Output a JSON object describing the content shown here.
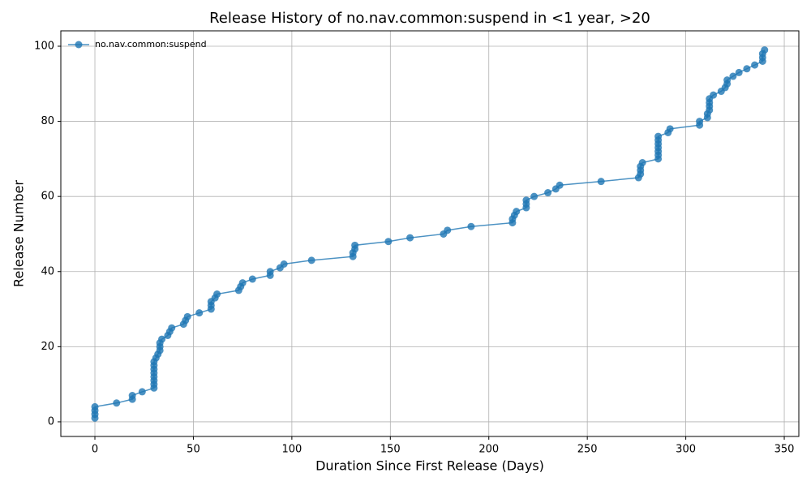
{
  "chart_data": {
    "type": "line",
    "title": "Release History of no.nav.common:suspend in <1 year, >20",
    "x_label": "Duration Since First Release (Days)",
    "y_label": "Release Number",
    "xlim": [
      -17.3,
      357.4
    ],
    "ylim": [
      -3.9,
      104.1
    ],
    "xticks": [
      0,
      50,
      100,
      150,
      200,
      250,
      300,
      350
    ],
    "yticks": [
      0,
      20,
      40,
      60,
      80,
      100
    ],
    "grid": true,
    "legend": "upper left",
    "series": [
      {
        "name": "no.nav.common:suspend",
        "color": "#1f77b4",
        "x": [
          0,
          0,
          0,
          0,
          11,
          19,
          19,
          24,
          30,
          30,
          30,
          30,
          30,
          30,
          30,
          30,
          31,
          32,
          33,
          33,
          33,
          34,
          37,
          38,
          39,
          45,
          46,
          47,
          53,
          59,
          59,
          59,
          61,
          62,
          73,
          74,
          75,
          80,
          89,
          89,
          94,
          96,
          110,
          131,
          131,
          132,
          132,
          149,
          160,
          177,
          179,
          191,
          212,
          212,
          213,
          214,
          219,
          219,
          219,
          223,
          230,
          234,
          236,
          257,
          276,
          277,
          277,
          277,
          278,
          286,
          286,
          286,
          286,
          286,
          286,
          286,
          291,
          292,
          307,
          307,
          311,
          311,
          312,
          312,
          312,
          312,
          314,
          318,
          320,
          321,
          321,
          324,
          327,
          331,
          335,
          339,
          339,
          339,
          340
        ],
        "values": [
          1,
          2,
          3,
          4,
          5,
          6,
          7,
          8,
          9,
          10,
          11,
          12,
          13,
          14,
          15,
          16,
          17,
          18,
          19,
          20,
          21,
          22,
          23,
          24,
          25,
          26,
          27,
          28,
          29,
          30,
          31,
          32,
          33,
          34,
          35,
          36,
          37,
          38,
          39,
          40,
          41,
          42,
          43,
          44,
          45,
          46,
          47,
          48,
          49,
          50,
          51,
          52,
          53,
          54,
          55,
          56,
          57,
          58,
          59,
          60,
          61,
          62,
          63,
          64,
          65,
          66,
          67,
          68,
          69,
          70,
          71,
          72,
          73,
          74,
          75,
          76,
          77,
          78,
          79,
          80,
          81,
          82,
          83,
          84,
          85,
          86,
          87,
          88,
          89,
          90,
          91,
          92,
          93,
          94,
          95,
          96,
          97,
          98,
          99
        ]
      }
    ]
  }
}
